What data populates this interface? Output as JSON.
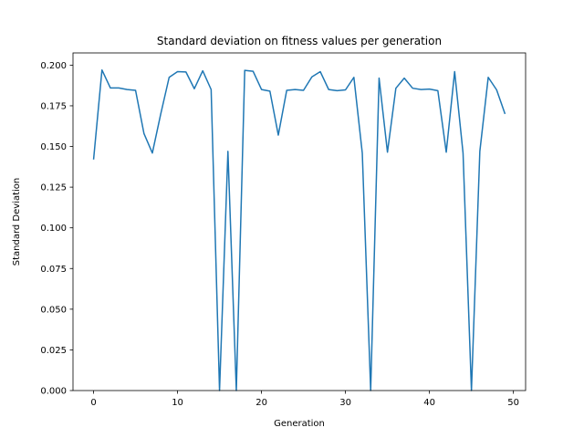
{
  "chart_data": {
    "type": "line",
    "title": "Standard deviation on fitness values per generation",
    "xlabel": "Generation",
    "ylabel": "Standard Deviation",
    "xlim": [
      -2.45,
      51.45
    ],
    "ylim": [
      0.0,
      0.2075
    ],
    "xticks": [
      0,
      10,
      20,
      30,
      40,
      50
    ],
    "yticks": [
      0.0,
      0.025,
      0.05,
      0.075,
      0.1,
      0.125,
      0.15,
      0.175,
      0.2
    ],
    "ytick_labels": [
      "0.000",
      "0.025",
      "0.050",
      "0.075",
      "0.100",
      "0.125",
      "0.150",
      "0.175",
      "0.200"
    ],
    "grid": false,
    "series": [
      {
        "color": "#1f77b4",
        "x": [
          0,
          1,
          2,
          3,
          4,
          5,
          6,
          7,
          8,
          9,
          10,
          11,
          12,
          13,
          14,
          15,
          16,
          17,
          18,
          19,
          20,
          21,
          22,
          23,
          24,
          25,
          26,
          27,
          28,
          29,
          30,
          31,
          32,
          33,
          34,
          35,
          36,
          37,
          38,
          39,
          40,
          41,
          42,
          43,
          44,
          45,
          46,
          47,
          48,
          49
        ],
        "y": [
          0.142,
          0.197,
          0.186,
          0.186,
          0.185,
          0.1845,
          0.158,
          0.146,
          0.17,
          0.1925,
          0.196,
          0.1958,
          0.1855,
          0.1965,
          0.185,
          0.0,
          0.147,
          0.0,
          0.1968,
          0.1962,
          0.185,
          0.184,
          0.157,
          0.1845,
          0.185,
          0.1845,
          0.1928,
          0.196,
          0.185,
          0.1843,
          0.1848,
          0.1925,
          0.146,
          0.0,
          0.192,
          0.1465,
          0.1858,
          0.192,
          0.1858,
          0.185,
          0.1853,
          0.1843,
          0.1465,
          0.196,
          0.146,
          0.0,
          0.147,
          0.1925,
          0.1848,
          0.17
        ]
      }
    ]
  }
}
